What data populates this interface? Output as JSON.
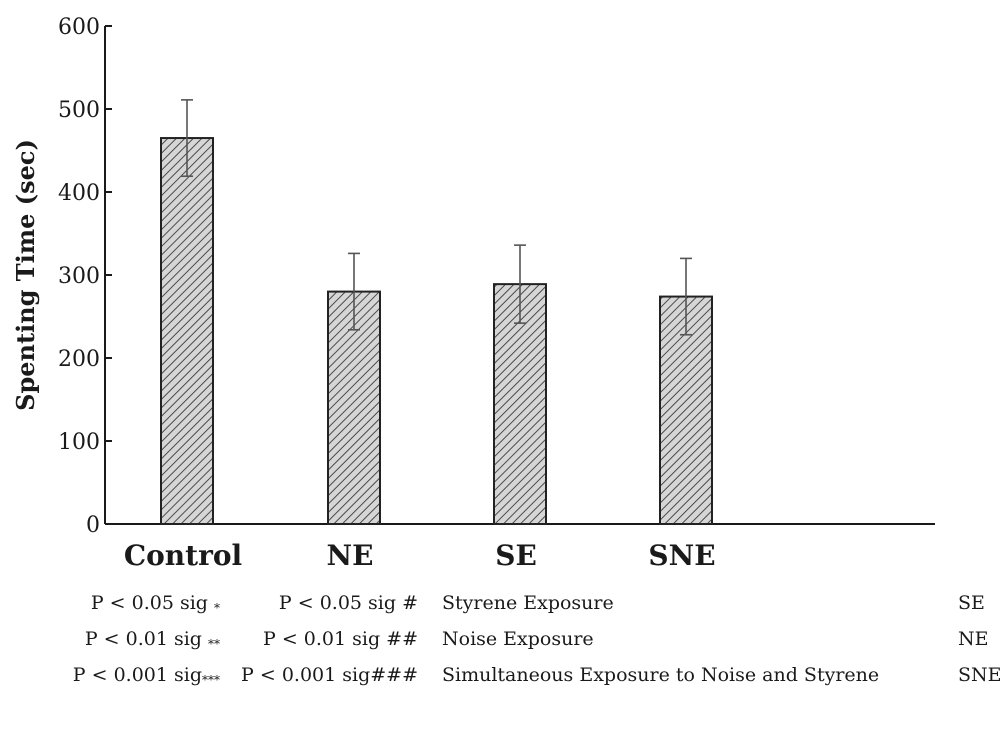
{
  "chart_data": {
    "type": "bar",
    "categories": [
      "Control",
      "NE",
      "SE",
      "SNE"
    ],
    "values": [
      465,
      280,
      289,
      274
    ],
    "errors": [
      46,
      46,
      47,
      46
    ],
    "ylabel": "Spenting Time (sec)",
    "xlabel": "",
    "ylim": [
      0,
      600
    ],
    "yticks": [
      0,
      100,
      200,
      300,
      400,
      500,
      600
    ],
    "grid": false,
    "bar_fill": "#c9c9c9",
    "bar_pattern": "diagonal-hatch"
  },
  "legend": {
    "rows": [
      {
        "sig_single": "P < 0.05 sig",
        "sig_single_mark": "*",
        "sig_double": "P < 0.05 sig #",
        "description": "Styrene Exposure",
        "abbr": "SE"
      },
      {
        "sig_single": "P < 0.01 sig",
        "sig_single_mark": "**",
        "sig_double": "P < 0.01 sig ##",
        "description": "Noise Exposure",
        "abbr": "NE"
      },
      {
        "sig_single": "P < 0.001 sig",
        "sig_single_mark": "***",
        "sig_double": "P < 0.001 sig###",
        "description": "Simultaneous Exposure to Noise and Styrene",
        "abbr": "SNE"
      }
    ]
  },
  "colors": {
    "axis": "#1a1a1a",
    "bar_border": "#222222",
    "hatch": "#555555"
  }
}
